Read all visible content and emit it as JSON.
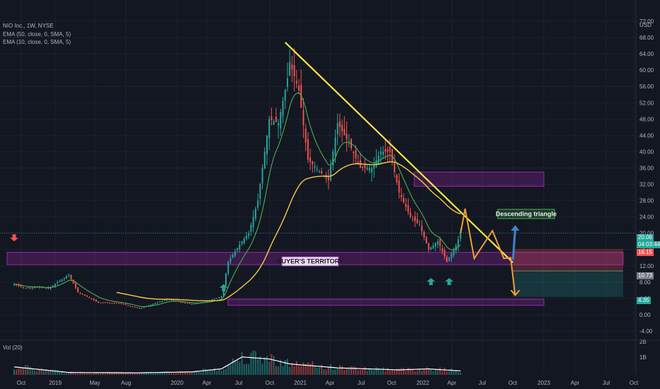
{
  "header": {
    "symbol_line": "NIO Inc., 1W, NYSE",
    "ema1": "EMA (50, close, 0, SMA, 5)",
    "ema2": "EMA (10, close, 0, SMA, 5)",
    "currency": "USD",
    "vol_label": "Vol (20)"
  },
  "price_tags": {
    "last": "20.06",
    "countdown": "04:03:44",
    "target_high": "16.15",
    "entry": "10.73",
    "target_low": "4.35"
  },
  "colors": {
    "background": "#131722",
    "up": "#26a69a",
    "down": "#ef5350",
    "trendline": "#f5e642",
    "ema_slow": "#f7c948",
    "ema_fast": "#4caf50",
    "zone": "#9c27b0",
    "projection": "#f0a030",
    "arrow_up": "#3d84c6"
  },
  "chart_data": {
    "type": "candlestick",
    "ticker": "NIO Inc.",
    "interval": "1W",
    "exchange": "NYSE",
    "ylim": [
      -4,
      72
    ],
    "y_ticks": [
      72.0,
      68.0,
      64.0,
      60.0,
      56.0,
      52.0,
      48.0,
      44.0,
      40.0,
      36.0,
      32.0,
      28.0,
      24.0,
      20.0,
      16.0,
      12.0,
      8.0,
      4.0,
      0.0,
      -4.0
    ],
    "x_ticks": [
      "Oct",
      "2019",
      "May",
      "Aug",
      "2020",
      "Apr",
      "Jul",
      "Oct",
      "2021",
      "Apr",
      "Jul",
      "Oct",
      "2022",
      "Apr",
      "Jul",
      "Oct",
      "2023",
      "Apr",
      "Jul",
      "Oct"
    ],
    "vol_ticks": [
      "2B",
      "1B"
    ],
    "annotations": {
      "buyers_territory": "BUYER'S TERRITORY",
      "descending_triangle": "Descending triangle"
    },
    "zones": [
      {
        "name": "buyers-zone",
        "y_from": 12.3,
        "y_to": 15.3
      },
      {
        "name": "lower-zone",
        "y_from": 2.3,
        "y_to": 3.8
      },
      {
        "name": "upper-zone",
        "y_from": 31.5,
        "y_to": 35.0
      }
    ],
    "trendline": {
      "from": [
        "2020-12-28",
        66.8
      ],
      "to": [
        "2022-11-28",
        12.8
      ]
    },
    "projection_path": [
      [
        "2022-06-20",
        20.0
      ],
      [
        "2022-07-04",
        26.0
      ],
      [
        "2022-08-01",
        13.8
      ],
      [
        "2022-09-26",
        20.6
      ],
      [
        "2022-10-31",
        13.8
      ],
      [
        "2022-11-21",
        14.0
      ],
      [
        "2022-12-05",
        4.8
      ]
    ],
    "breakout_arrow": {
      "from": [
        "2022-11-28",
        13.5
      ],
      "to": [
        "2022-12-05",
        22.0
      ]
    },
    "position": {
      "upper": 16.15,
      "entry": 10.73,
      "lower": 4.35,
      "x_from": "2022-11-28",
      "x_to": "2023-03-13"
    },
    "markers": [
      {
        "type": "arrow-down",
        "x": "2018-09-17",
        "y": 18.0
      },
      {
        "type": "arrow-up",
        "x": "2020-06-22",
        "y": 7.5
      },
      {
        "type": "arrow-up",
        "x": "2022-03-21",
        "y": 9.0
      },
      {
        "type": "arrow-up",
        "x": "2022-05-16",
        "y": 9.0
      }
    ],
    "price_anchors": [
      [
        "2018-09-17",
        7.5
      ],
      [
        "2018-10-15",
        6.5
      ],
      [
        "2018-12-03",
        6.8
      ],
      [
        "2018-12-31",
        6.4
      ],
      [
        "2019-03-04",
        9.8
      ],
      [
        "2019-04-01",
        5.5
      ],
      [
        "2019-06-03",
        3.0
      ],
      [
        "2019-08-05",
        2.8
      ],
      [
        "2019-10-07",
        1.5
      ],
      [
        "2019-12-30",
        3.8
      ],
      [
        "2020-03-16",
        2.6
      ],
      [
        "2020-05-04",
        3.3
      ],
      [
        "2020-06-15",
        4.5
      ],
      [
        "2020-07-06",
        13.0
      ],
      [
        "2020-08-17",
        18.0
      ],
      [
        "2020-09-07",
        20.0
      ],
      [
        "2020-10-05",
        28.0
      ],
      [
        "2020-11-09",
        48.0
      ],
      [
        "2020-12-07",
        47.0
      ],
      [
        "2021-01-04",
        58.0
      ],
      [
        "2021-01-11",
        62.0
      ],
      [
        "2021-02-08",
        55.0
      ],
      [
        "2021-03-08",
        38.0
      ],
      [
        "2021-05-10",
        33.0
      ],
      [
        "2021-06-07",
        47.0
      ],
      [
        "2021-07-12",
        42.0
      ],
      [
        "2021-08-16",
        36.0
      ],
      [
        "2021-09-20",
        36.0
      ],
      [
        "2021-10-18",
        40.0
      ],
      [
        "2021-11-15",
        40.0
      ],
      [
        "2021-12-13",
        30.0
      ],
      [
        "2022-01-17",
        24.0
      ],
      [
        "2022-02-14",
        22.0
      ],
      [
        "2022-03-14",
        16.0
      ],
      [
        "2022-04-11",
        18.0
      ],
      [
        "2022-05-09",
        13.0
      ],
      [
        "2022-06-06",
        17.0
      ],
      [
        "2022-06-20",
        20.06
      ]
    ],
    "volume_anchors": [
      [
        "2018-09-17",
        0.4
      ],
      [
        "2019-03-04",
        0.12
      ],
      [
        "2019-09-30",
        0.1
      ],
      [
        "2020-03-16",
        0.15
      ],
      [
        "2020-06-15",
        0.3
      ],
      [
        "2020-08-17",
        0.9
      ],
      [
        "2020-11-09",
        0.8
      ],
      [
        "2021-01-11",
        0.55
      ],
      [
        "2021-06-07",
        0.35
      ],
      [
        "2021-12-13",
        0.25
      ],
      [
        "2022-03-14",
        0.3
      ],
      [
        "2022-06-20",
        0.2
      ]
    ]
  }
}
